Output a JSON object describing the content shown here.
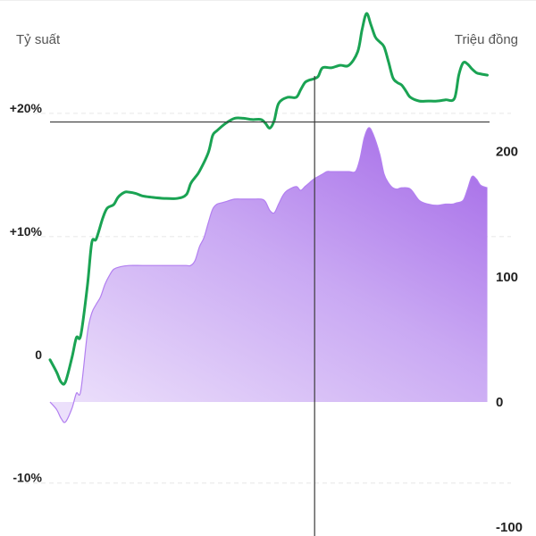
{
  "chart_data": {
    "type": "line",
    "title": "",
    "ylabel_left": "Tỷ suất",
    "ylabel_right": "Triệu đồng",
    "y_left_ticks": [
      {
        "value": 20,
        "label": "+20%"
      },
      {
        "value": 10,
        "label": "+10%"
      },
      {
        "value": 0,
        "label": "0"
      },
      {
        "value": -10,
        "label": "-10%"
      }
    ],
    "y_right_ticks": [
      {
        "value": 200,
        "label": "200"
      },
      {
        "value": 100,
        "label": "100"
      },
      {
        "value": 0,
        "label": "0"
      },
      {
        "value": -100,
        "label": "-100"
      }
    ],
    "ylim_left": [
      -14.3,
      29.2
    ],
    "ylim_right": [
      -107,
      321
    ],
    "grid": "horizontal dashed",
    "x_domain": [
      0,
      100
    ],
    "crosshair": {
      "x": 60.2,
      "y_left": 19.3
    },
    "colors": {
      "line": "#1aa353",
      "area": "#a768ea",
      "crosshair": "#3a3a3a",
      "grid": "#e6e6e6"
    },
    "series": [
      {
        "kind": "line",
        "axis": "left",
        "smooth": true,
        "x": [
          0,
          1.5,
          2.5,
          3.5,
          5,
          6,
          7,
          8.5,
          9.5,
          10.5,
          12,
          13,
          14.5,
          15.5,
          17,
          18,
          19.5,
          21,
          23,
          26,
          29,
          31,
          32,
          33,
          34,
          36,
          37,
          38,
          40,
          42,
          44,
          46,
          48,
          49,
          50,
          51,
          52,
          54,
          56,
          57,
          58,
          59,
          60,
          61,
          62,
          64,
          66,
          68,
          70,
          71,
          72,
          73,
          74,
          75,
          76,
          77,
          78,
          79,
          80,
          81,
          82,
          84,
          86,
          88,
          90,
          92,
          93,
          94,
          95,
          96,
          97,
          98,
          99.5
        ],
        "y": [
          0,
          -1,
          -1.8,
          -1.8,
          0.2,
          1.8,
          2,
          6,
          9.5,
          9.8,
          11.5,
          12.3,
          12.6,
          13.2,
          13.6,
          13.6,
          13.5,
          13.3,
          13.2,
          13.1,
          13.1,
          13.4,
          14.3,
          14.8,
          15.3,
          16.8,
          18.2,
          18.6,
          19.2,
          19.6,
          19.6,
          19.5,
          19.5,
          19.2,
          18.8,
          19.4,
          20.8,
          21.3,
          21.3,
          21.9,
          22.5,
          22.7,
          22.8,
          23,
          23.7,
          23.7,
          23.9,
          23.9,
          25,
          26.8,
          28.1,
          27.2,
          26.2,
          25.8,
          25.4,
          24.2,
          22.9,
          22.5,
          22.3,
          21.8,
          21.3,
          21.0,
          21.0,
          21.0,
          21.1,
          21.2,
          23.1,
          24.1,
          24.0,
          23.6,
          23.3,
          23.2,
          23.1
        ]
      },
      {
        "kind": "area",
        "axis": "right",
        "smooth": true,
        "x": [
          0,
          1.5,
          2.5,
          3.5,
          5,
          6,
          7,
          8.5,
          9.5,
          10.5,
          11.5,
          12.5,
          13.5,
          14.5,
          16,
          18,
          21,
          25,
          29,
          31,
          32,
          33,
          34,
          35,
          36,
          37,
          38,
          39,
          40,
          42,
          44,
          46,
          48,
          49,
          50,
          51,
          52,
          53,
          54,
          56,
          57,
          58,
          59,
          60,
          61,
          62,
          63,
          64,
          66,
          68,
          69.5,
          70.5,
          71.5,
          72.5,
          73.5,
          75,
          76,
          77,
          78,
          79,
          80,
          82,
          84,
          86,
          88,
          90,
          91.5,
          92.5,
          94,
          95,
          96,
          97,
          98,
          99.5
        ],
        "y": [
          0,
          -6,
          -13,
          -16,
          -5,
          7,
          9,
          55,
          71,
          78,
          84,
          94,
          101,
          106,
          108,
          109,
          109,
          109,
          109,
          109,
          109,
          113,
          124,
          131,
          143,
          154,
          158,
          159,
          160,
          162,
          162,
          162,
          162,
          160,
          153,
          151,
          158,
          165,
          169,
          172,
          169,
          172,
          175,
          178,
          180,
          182,
          184,
          184,
          184,
          184,
          184,
          194,
          211,
          219,
          214,
          198,
          182,
          175,
          171,
          170,
          171,
          170,
          161,
          158,
          157,
          158,
          158,
          159,
          161,
          170,
          180,
          178,
          173,
          171
        ]
      }
    ]
  }
}
